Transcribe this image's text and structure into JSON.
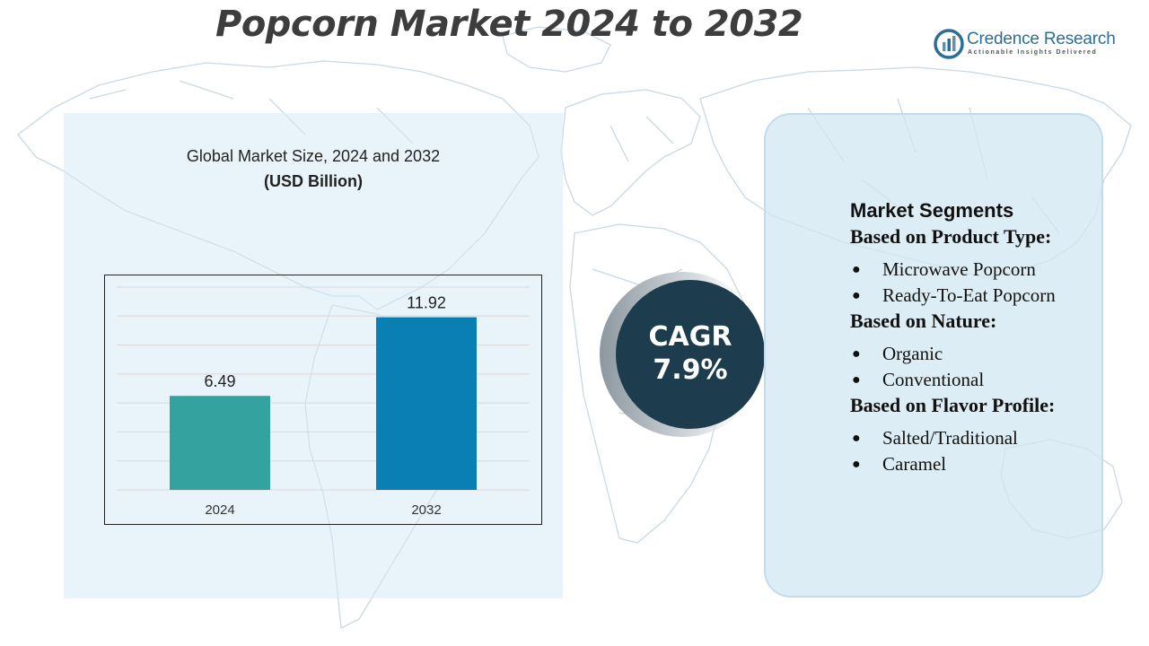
{
  "page": {
    "title": "Popcorn Market 2024 to 2032"
  },
  "logo": {
    "name": "Credence Research",
    "tagline": "Actionable Insights Delivered",
    "icon": "credence-logo-icon"
  },
  "chart_data": {
    "type": "bar",
    "title": "Global Market Size, 2024 and 2032",
    "subtitle": "(USD Billion)",
    "categories": [
      "2024",
      "2032"
    ],
    "values": [
      6.49,
      11.92
    ],
    "data_labels": [
      "6.49",
      "11.92"
    ],
    "colors": [
      "#34a29f",
      "#0a7fb4"
    ],
    "ylim": [
      0,
      14
    ],
    "grid": true,
    "legend": "none"
  },
  "cagr": {
    "label": "CAGR",
    "value": "7.9%"
  },
  "segments": {
    "heading": "Market Segments",
    "groups": [
      {
        "title": "Based on Product Type:",
        "items": [
          "Microwave Popcorn",
          "Ready-To-Eat Popcorn"
        ]
      },
      {
        "title": "Based on Nature:",
        "items": [
          "Organic",
          "Conventional"
        ]
      },
      {
        "title": "Based on Flavor Profile:",
        "items": [
          "Salted/Traditional",
          "Caramel"
        ]
      }
    ],
    "bullet": "●"
  },
  "colors": {
    "panel_bg": "#d6e9f6",
    "cagr_bg": "#1d3d4e",
    "title_text": "#3d3d3d",
    "brand": "#2c6e97"
  }
}
